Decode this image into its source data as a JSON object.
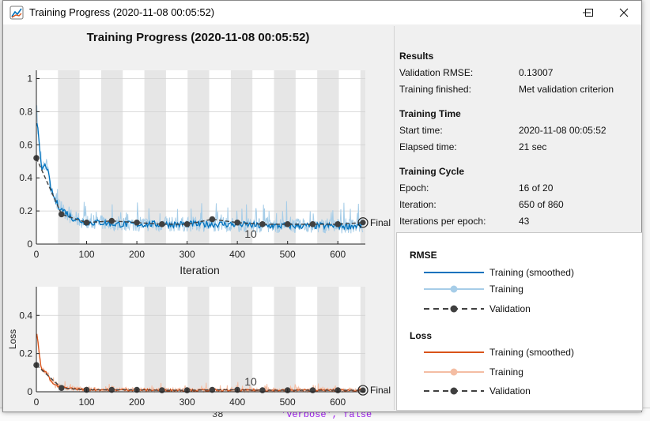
{
  "window": {
    "title": "Training Progress (2020-11-08 00:05:52)"
  },
  "figure": {
    "title": "Training Progress (2020-11-08 00:05:52)"
  },
  "info": {
    "results": {
      "heading": "Results",
      "validation_rmse_label": "Validation RMSE:",
      "validation_rmse": "0.13007",
      "training_finished_label": "Training finished:",
      "training_finished": "Met validation criterion"
    },
    "training_time": {
      "heading": "Training Time",
      "start_time_label": "Start time:",
      "start_time": "2020-11-08 00:05:52",
      "elapsed_label": "Elapsed time:",
      "elapsed": "21 sec"
    },
    "training_cycle": {
      "heading": "Training Cycle",
      "epoch_label": "Epoch:",
      "epoch": "16 of 20",
      "iteration_label": "Iteration:",
      "iteration": "650 of 860",
      "ipe_label": "Iterations per epoch:",
      "ipe": "43"
    }
  },
  "legend": {
    "rmse": {
      "heading": "RMSE",
      "smoothed": "Training (smoothed)",
      "training": "Training",
      "validation": "Validation"
    },
    "loss": {
      "heading": "Loss",
      "smoothed": "Training (smoothed)",
      "training": "Training",
      "validation": "Validation"
    }
  },
  "ide": {
    "bottom_line_number": "38",
    "bottom_code": "'Verbose', false"
  },
  "colors": {
    "rmse_smoothed": "#0072bd",
    "rmse_raw": "#a6cde8",
    "loss_smoothed": "#d95319",
    "loss_raw": "#f4bda3",
    "validation": "#404040",
    "epoch_band": "#e6e6e6"
  },
  "chart_data": [
    {
      "type": "line",
      "title": "",
      "xlabel": "Iteration",
      "ylabel": "",
      "xlim": [
        0,
        650
      ],
      "ylim": [
        0,
        1.05
      ],
      "xticks": [
        0,
        100,
        200,
        300,
        400,
        500,
        600
      ],
      "yticks": [
        0,
        0.2,
        0.4,
        0.6,
        0.8,
        1
      ],
      "epoch_iterations": 43,
      "epoch_label": "10",
      "final_label": "Final",
      "series": [
        {
          "name": "Training (smoothed)",
          "x": [
            1,
            10,
            20,
            30,
            40,
            50,
            60,
            70,
            80,
            90,
            100,
            130,
            160,
            200,
            250,
            300,
            350,
            400,
            450,
            500,
            550,
            600,
            650
          ],
          "values": [
            0.75,
            0.45,
            0.48,
            0.32,
            0.25,
            0.21,
            0.19,
            0.16,
            0.15,
            0.14,
            0.13,
            0.13,
            0.12,
            0.12,
            0.12,
            0.12,
            0.12,
            0.12,
            0.11,
            0.11,
            0.11,
            0.11,
            0.11
          ]
        },
        {
          "name": "Validation",
          "x": [
            0,
            50,
            100,
            150,
            200,
            250,
            300,
            350,
            400,
            450,
            500,
            550,
            600,
            650
          ],
          "values": [
            0.52,
            0.18,
            0.13,
            0.14,
            0.13,
            0.12,
            0.12,
            0.15,
            0.13,
            0.12,
            0.12,
            0.12,
            0.12,
            0.13
          ]
        }
      ]
    },
    {
      "type": "line",
      "title": "",
      "xlabel": "Iteration",
      "ylabel": "Loss",
      "xlim": [
        0,
        650
      ],
      "ylim": [
        0,
        0.55
      ],
      "xticks": [
        0,
        100,
        200,
        300,
        400,
        500,
        600
      ],
      "yticks": [
        0,
        0.2,
        0.4
      ],
      "epoch_iterations": 43,
      "epoch_label": "10",
      "final_label": "Final",
      "series": [
        {
          "name": "Training (smoothed)",
          "x": [
            1,
            10,
            20,
            30,
            40,
            50,
            60,
            80,
            100,
            150,
            200,
            300,
            400,
            500,
            600,
            650
          ],
          "values": [
            0.3,
            0.12,
            0.1,
            0.05,
            0.03,
            0.025,
            0.02,
            0.015,
            0.012,
            0.01,
            0.01,
            0.008,
            0.008,
            0.008,
            0.008,
            0.008
          ]
        },
        {
          "name": "Validation",
          "x": [
            0,
            50,
            100,
            150,
            200,
            250,
            300,
            350,
            400,
            450,
            500,
            550,
            600,
            650
          ],
          "values": [
            0.14,
            0.02,
            0.01,
            0.01,
            0.01,
            0.008,
            0.008,
            0.01,
            0.01,
            0.008,
            0.008,
            0.008,
            0.008,
            0.008
          ]
        }
      ]
    }
  ]
}
